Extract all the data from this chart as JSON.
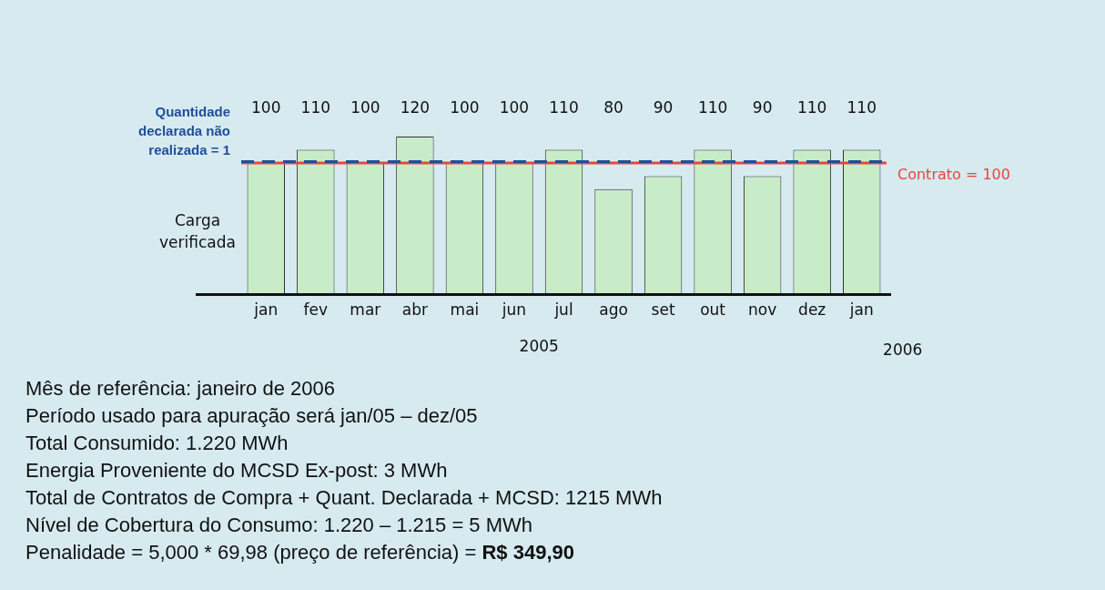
{
  "chart_data": {
    "type": "bar",
    "categories": [
      "jan",
      "fev",
      "mar",
      "abr",
      "mai",
      "jun",
      "jul",
      "ago",
      "set",
      "out",
      "nov",
      "dez",
      "jan"
    ],
    "values": [
      100,
      110,
      100,
      120,
      100,
      100,
      110,
      80,
      90,
      110,
      90,
      110,
      110
    ],
    "color": "#c8ecc8",
    "data_labels": true,
    "ref_lines": [
      {
        "axis": "y",
        "value": 100,
        "label": "Contrato = 100",
        "color": "#e8463a",
        "line_style": "solid"
      },
      {
        "axis": "y",
        "value": 101,
        "color": "#1f4e9a",
        "line_style": "dashed"
      }
    ],
    "annotations": [
      "Carga verificada",
      "2005",
      "2006",
      "Quantidade declarada não realizada = 1",
      "Mês de referência: janeiro de 2006",
      "Período usado para apuração será jan/05 – dez/05",
      "Total Consumido: 1.220 MWh",
      "Energia Proveniente do MCSD Ex-post: 3 MWh",
      "Total de Contratos de Compra + Quant. Declarada + MCSD: 1215 MWh",
      "Nível de Cobertura do Consumo: 1.220 – 1.215 = 5 MWh",
      "Penalidade = 5,000 * 69,98 (preço de referência) = R$ 349,90"
    ]
  }
}
